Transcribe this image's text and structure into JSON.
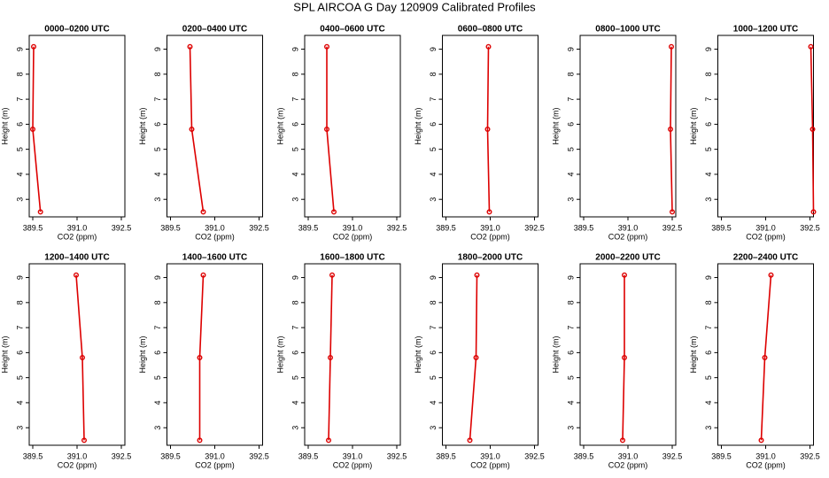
{
  "title": "SPL AIRCOA G  Day 120909  Calibrated Profiles",
  "chart_data": [
    {
      "type": "line",
      "title": "0000–0200 UTC",
      "xlabel": "CO2 (ppm)",
      "ylabel": "Height (m)",
      "x": [
        389.53,
        389.5,
        389.76
      ],
      "values": [
        9.1,
        5.8,
        2.5
      ],
      "color": "#dd0000",
      "xlim": [
        389.38,
        392.62
      ],
      "ylim": [
        2.3,
        9.55
      ],
      "xticks": [
        389.5,
        {
          "value": 391,
          "label": "391.0"
        },
        392.5
      ],
      "yticks": [
        3,
        4,
        5,
        6,
        7,
        8,
        9
      ]
    },
    {
      "type": "line",
      "title": "0200–0400 UTC",
      "xlabel": "CO2 (ppm)",
      "ylabel": "Height (m)",
      "x": [
        390.16,
        390.22,
        390.61
      ],
      "values": [
        9.1,
        5.8,
        2.5
      ],
      "color": "#dd0000",
      "xlim": [
        389.38,
        392.62
      ],
      "ylim": [
        2.3,
        9.55
      ],
      "xticks": [
        389.5,
        {
          "value": 391,
          "label": "391.0"
        },
        392.5
      ],
      "yticks": [
        3,
        4,
        5,
        6,
        7,
        8,
        9
      ]
    },
    {
      "type": "line",
      "title": "0400–0600 UTC",
      "xlabel": "CO2 (ppm)",
      "ylabel": "Height (m)",
      "x": [
        390.13,
        390.13,
        390.37
      ],
      "values": [
        9.1,
        5.8,
        2.5
      ],
      "color": "#dd0000",
      "xlim": [
        389.38,
        392.62
      ],
      "ylim": [
        2.3,
        9.55
      ],
      "xticks": [
        389.5,
        {
          "value": 391,
          "label": "391.0"
        },
        392.5
      ],
      "yticks": [
        3,
        4,
        5,
        6,
        7,
        8,
        9
      ]
    },
    {
      "type": "line",
      "title": "0600–0800 UTC",
      "xlabel": "CO2 (ppm)",
      "ylabel": "Height (m)",
      "x": [
        390.94,
        390.91,
        390.97
      ],
      "values": [
        9.1,
        5.8,
        2.5
      ],
      "color": "#dd0000",
      "xlim": [
        389.38,
        392.62
      ],
      "ylim": [
        2.3,
        9.55
      ],
      "xticks": [
        389.5,
        {
          "value": 391,
          "label": "391.0"
        },
        392.5
      ],
      "yticks": [
        3,
        4,
        5,
        6,
        7,
        8,
        9
      ]
    },
    {
      "type": "line",
      "title": "0800–1000 UTC",
      "xlabel": "CO2 (ppm)",
      "ylabel": "Height (m)",
      "x": [
        392.47,
        392.44,
        392.5
      ],
      "values": [
        9.1,
        5.8,
        2.5
      ],
      "color": "#dd0000",
      "xlim": [
        389.38,
        392.62
      ],
      "ylim": [
        2.3,
        9.55
      ],
      "xticks": [
        389.5,
        {
          "value": 391,
          "label": "391.0"
        },
        392.5
      ],
      "yticks": [
        3,
        4,
        5,
        6,
        7,
        8,
        9
      ]
    },
    {
      "type": "line",
      "title": "1000–1200 UTC",
      "xlabel": "CO2 (ppm)",
      "ylabel": "Height (m)",
      "x": [
        392.53,
        392.59,
        392.62
      ],
      "values": [
        9.1,
        5.8,
        2.5
      ],
      "color": "#dd0000",
      "xlim": [
        389.38,
        392.62
      ],
      "ylim": [
        2.3,
        9.55
      ],
      "xticks": [
        389.5,
        {
          "value": 391,
          "label": "391.0"
        },
        392.5
      ],
      "yticks": [
        3,
        4,
        5,
        6,
        7,
        8,
        9
      ]
    },
    {
      "type": "line",
      "title": "1200–1400 UTC",
      "xlabel": "CO2 (ppm)",
      "ylabel": "Height (m)",
      "x": [
        390.97,
        391.18,
        391.24
      ],
      "values": [
        9.1,
        5.8,
        2.5
      ],
      "color": "#dd0000",
      "xlim": [
        389.38,
        392.62
      ],
      "ylim": [
        2.3,
        9.55
      ],
      "xticks": [
        389.5,
        {
          "value": 391,
          "label": "391.0"
        },
        392.5
      ],
      "yticks": [
        3,
        4,
        5,
        6,
        7,
        8,
        9
      ]
    },
    {
      "type": "line",
      "title": "1400–1600 UTC",
      "xlabel": "CO2 (ppm)",
      "ylabel": "Height (m)",
      "x": [
        390.61,
        390.49,
        390.49
      ],
      "values": [
        9.1,
        5.8,
        2.5
      ],
      "color": "#dd0000",
      "xlim": [
        389.38,
        392.62
      ],
      "ylim": [
        2.3,
        9.55
      ],
      "xticks": [
        389.5,
        {
          "value": 391,
          "label": "391.0"
        },
        392.5
      ],
      "yticks": [
        3,
        4,
        5,
        6,
        7,
        8,
        9
      ]
    },
    {
      "type": "line",
      "title": "1600–1800 UTC",
      "xlabel": "CO2 (ppm)",
      "ylabel": "Height (m)",
      "x": [
        390.31,
        390.25,
        390.19
      ],
      "values": [
        9.1,
        5.8,
        2.5
      ],
      "color": "#dd0000",
      "xlim": [
        389.38,
        392.62
      ],
      "ylim": [
        2.3,
        9.55
      ],
      "xticks": [
        389.5,
        {
          "value": 391,
          "label": "391.0"
        },
        392.5
      ],
      "yticks": [
        3,
        4,
        5,
        6,
        7,
        8,
        9
      ]
    },
    {
      "type": "line",
      "title": "1800–2000 UTC",
      "xlabel": "CO2 (ppm)",
      "ylabel": "Height (m)",
      "x": [
        390.55,
        390.52,
        390.31
      ],
      "values": [
        9.1,
        5.8,
        2.5
      ],
      "color": "#dd0000",
      "xlim": [
        389.38,
        392.62
      ],
      "ylim": [
        2.3,
        9.55
      ],
      "xticks": [
        389.5,
        {
          "value": 391,
          "label": "391.0"
        },
        392.5
      ],
      "yticks": [
        3,
        4,
        5,
        6,
        7,
        8,
        9
      ]
    },
    {
      "type": "line",
      "title": "2000–2200 UTC",
      "xlabel": "CO2 (ppm)",
      "ylabel": "Height (m)",
      "x": [
        390.88,
        390.88,
        390.82
      ],
      "values": [
        9.1,
        5.8,
        2.5
      ],
      "color": "#dd0000",
      "xlim": [
        389.38,
        392.62
      ],
      "ylim": [
        2.3,
        9.55
      ],
      "xticks": [
        389.5,
        {
          "value": 391,
          "label": "391.0"
        },
        392.5
      ],
      "yticks": [
        3,
        4,
        5,
        6,
        7,
        8,
        9
      ]
    },
    {
      "type": "line",
      "title": "2200–2400 UTC",
      "xlabel": "CO2 (ppm)",
      "ylabel": "Height (m)",
      "x": [
        391.18,
        390.97,
        390.85
      ],
      "values": [
        9.1,
        5.8,
        2.5
      ],
      "color": "#dd0000",
      "xlim": [
        389.38,
        392.62
      ],
      "ylim": [
        2.3,
        9.55
      ],
      "xticks": [
        389.5,
        {
          "value": 391,
          "label": "391.0"
        },
        392.5
      ],
      "yticks": [
        3,
        4,
        5,
        6,
        7,
        8,
        9
      ]
    }
  ]
}
